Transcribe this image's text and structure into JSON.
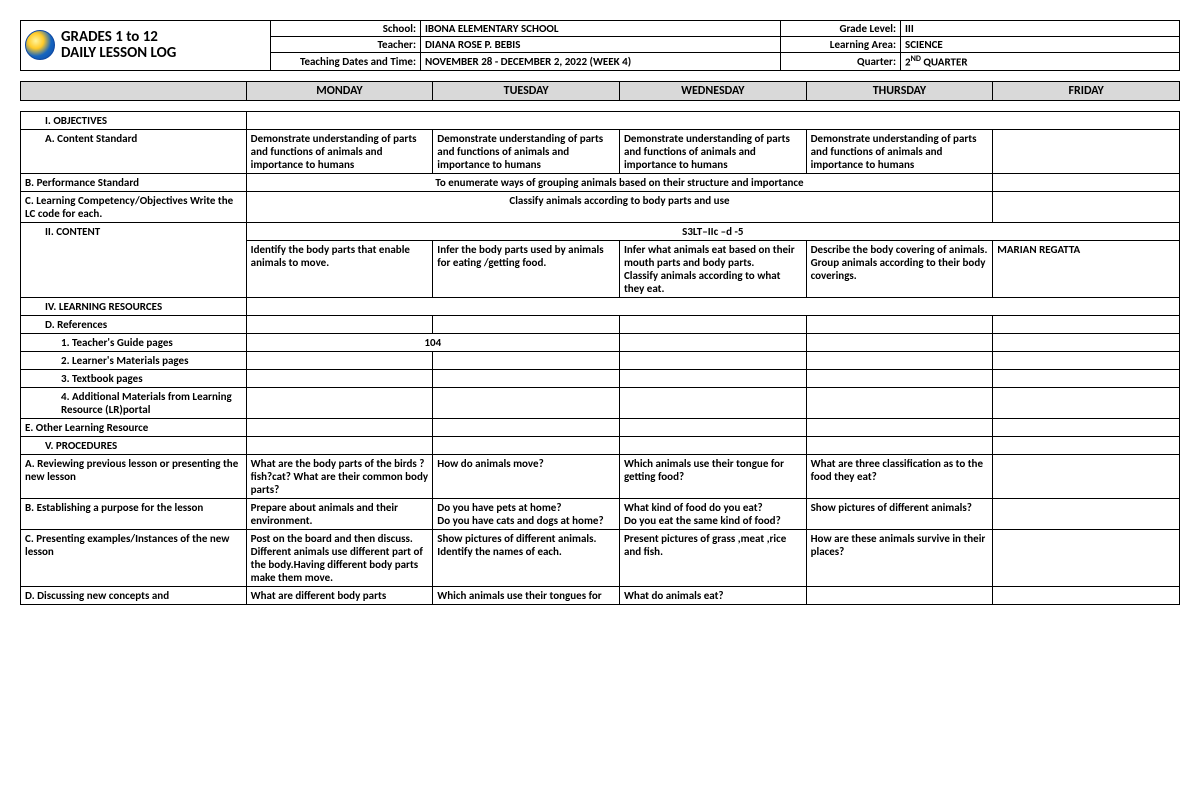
{
  "header": {
    "title_line1": "GRADES 1 to 12",
    "title_line2": "DAILY LESSON LOG",
    "labels": {
      "school": "School:",
      "teacher": "Teacher:",
      "dates": "Teaching Dates and Time:",
      "grade": "Grade Level:",
      "area": "Learning Area:",
      "quarter": "Quarter:"
    },
    "values": {
      "school": "IBONA ELEMENTARY SCHOOL",
      "teacher": "DIANA ROSE P. BEBIS",
      "dates": "NOVEMBER 28 - DECEMBER 2, 2022 (WEEK 4)",
      "grade": "III",
      "area": "SCIENCE",
      "quarter_num": "2",
      "quarter_suffix": "ND",
      "quarter_tail": " QUARTER"
    }
  },
  "days": {
    "mon": "MONDAY",
    "tue": "TUESDAY",
    "wed": "WEDNESDAY",
    "thu": "THURSDAY",
    "fri": "FRIDAY"
  },
  "rows": {
    "objectives": "I.          OBJECTIVES",
    "content_standard": "A.   Content Standard",
    "performance_standard": "B.   Performance Standard",
    "learning_competency": "C.   Learning Competency/Objectives Write the LC code for each.",
    "content": "II.          CONTENT",
    "learning_resources": "IV.   LEARNING RESOURCES",
    "references": "D.   References",
    "teachers_guide": "1.   Teacher's Guide pages",
    "learners_materials": "2.   Learner's Materials pages",
    "textbook": "3.   Textbook pages",
    "additional_materials": "4.   Additional Materials from Learning Resource (LR)portal",
    "other_resource": "E.   Other Learning Resource",
    "procedures": "V.          PROCEDURES",
    "reviewing": "A.   Reviewing previous lesson or presenting the new lesson",
    "establishing": "B.   Establishing a purpose for the lesson",
    "presenting": "C.   Presenting examples/Instances of the new lesson",
    "discussing": "D.   Discussing new concepts and"
  },
  "content_standard": {
    "mon": "Demonstrate understanding of parts and functions of animals and importance to humans",
    "tue": "Demonstrate understanding of parts and functions of animals and importance to humans",
    "wed": "Demonstrate understanding of parts and functions of animals and importance to humans",
    "thu": "Demonstrate understanding of parts and functions of animals and importance to humans"
  },
  "performance_standard": "To enumerate ways of grouping animals based on their structure and importance",
  "learning_competency": "Classify animals according to body parts and use",
  "content_code": "S3LT–IIc –d -5",
  "content_cells": {
    "mon": "Identify the body parts that enable animals to move.",
    "tue": "Infer the body parts used by animals for eating /getting food.",
    "wed": "Infer what animals eat based on their mouth parts and body parts.\nClassify animals according to what they eat.",
    "thu": "Describe the body covering of animals.\nGroup animals according to their body coverings.",
    "fri": "MARIAN REGATTA"
  },
  "teachers_guide_val": "104",
  "reviewing": {
    "mon": "What are the body parts of the birds ?fish?cat? What are their common body parts?",
    "tue": "How do animals move?",
    "wed": "Which animals use their tongue for getting food?",
    "thu": "What are three classification as to the food they eat?"
  },
  "establishing": {
    "mon": "Prepare about animals and their environment.",
    "tue": "Do you have pets at home?\nDo you have cats and dogs at home?",
    "wed": "What kind of food do you eat?\nDo you eat the same kind of food?",
    "thu": "Show pictures of different animals?"
  },
  "presenting": {
    "mon": "Post on the board and then discuss.\nDifferent animals use different part of the body.Having different body parts make them move.",
    "tue": "Show pictures of different animals. Identify the names of each.",
    "wed": "Present pictures of grass ,meat ,rice and fish.",
    "thu": "How are these animals survive in their places?"
  },
  "discussing": {
    "mon": "What are different body parts",
    "tue": "Which animals use their tongues for",
    "wed": "What do animals eat?"
  },
  "colors": {
    "header_bg": "#d9d9d9",
    "border": "#000000",
    "text": "#000000",
    "background": "#ffffff"
  }
}
